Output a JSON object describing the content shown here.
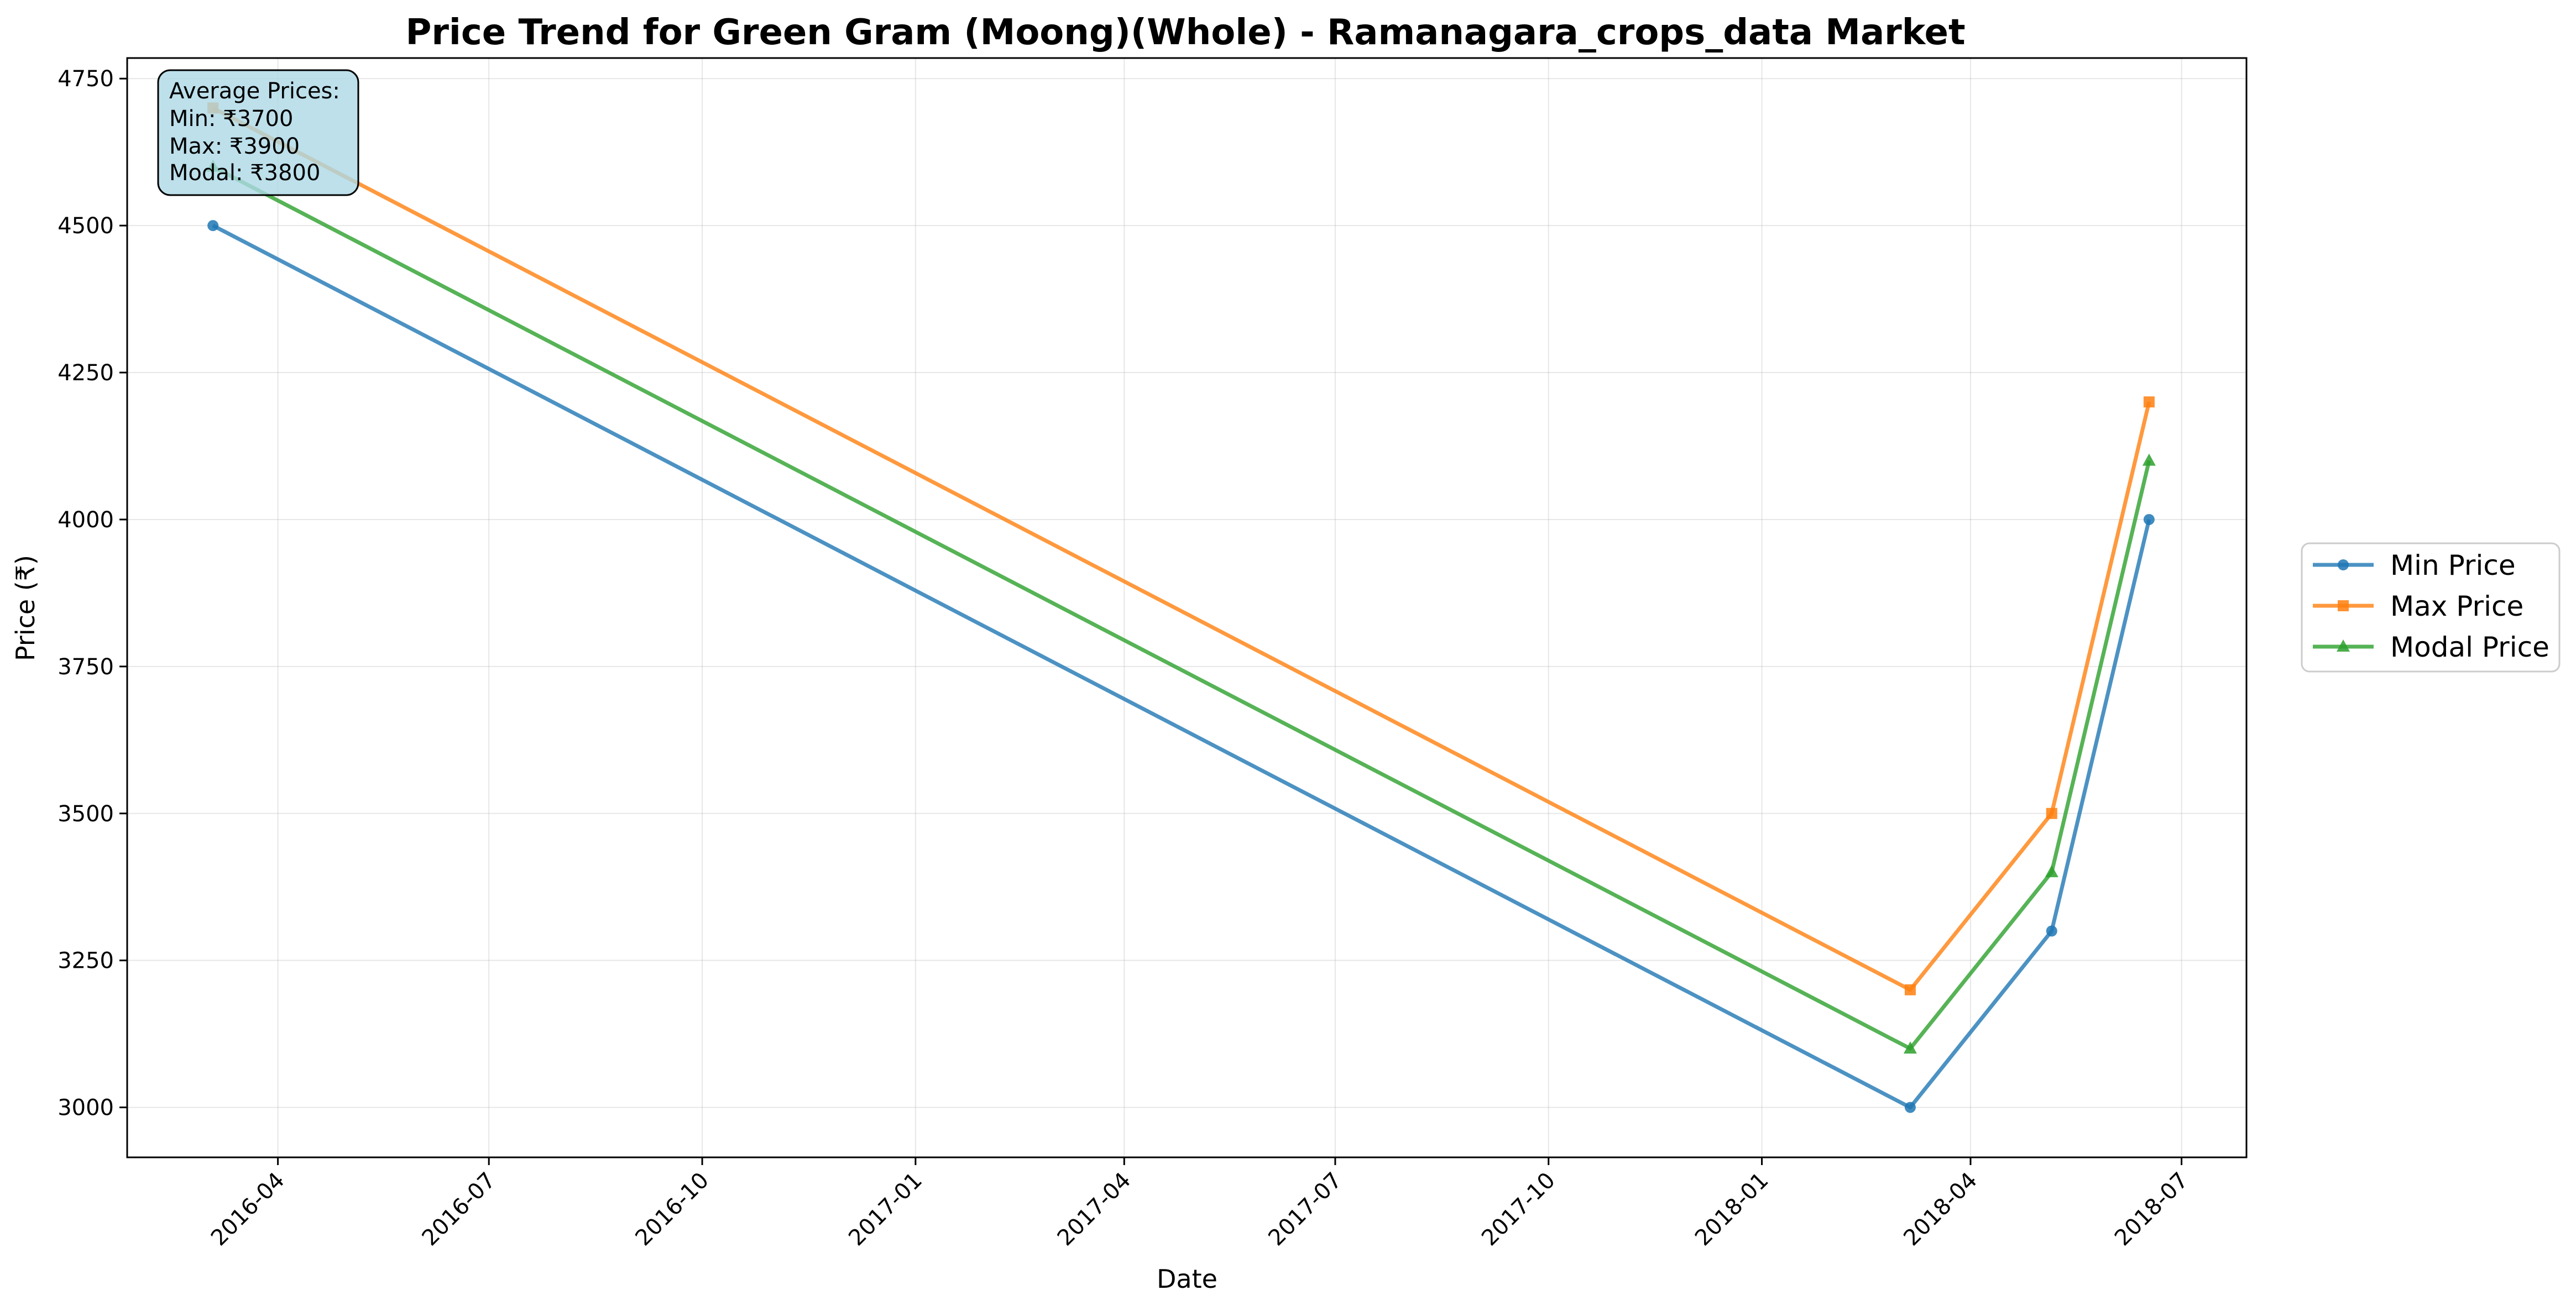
{
  "chart_data": {
    "type": "line",
    "title": "Price Trend for Green Gram (Moong)(Whole) - Ramanagara_crops_data Market",
    "xlabel": "Date",
    "ylabel": "Price (₹)",
    "x_ticks": [
      "2016-04",
      "2016-07",
      "2016-10",
      "2017-01",
      "2017-04",
      "2017-07",
      "2017-10",
      "2018-01",
      "2018-04",
      "2018-07"
    ],
    "y_ticks": [
      3000,
      3250,
      3500,
      3750,
      4000,
      4250,
      4500,
      4750
    ],
    "xlim": [
      "2016-01-27",
      "2018-07-29"
    ],
    "ylim": [
      2915,
      4785
    ],
    "x": [
      "2016-03-04",
      "2018-03-06",
      "2018-05-06",
      "2018-06-17"
    ],
    "series": [
      {
        "name": "Min Price",
        "color": "#1f77b4",
        "marker": "circle",
        "values": [
          4500,
          3000,
          3300,
          4000
        ]
      },
      {
        "name": "Max Price",
        "color": "#ff7f0e",
        "marker": "square",
        "values": [
          4700,
          3200,
          3500,
          4200
        ]
      },
      {
        "name": "Modal Price",
        "color": "#2ca02c",
        "marker": "triangle",
        "values": [
          4600,
          3100,
          3400,
          4100
        ]
      }
    ],
    "grid": true,
    "legend_position": "right, outside plot",
    "annotation": {
      "lines": [
        "Average Prices:",
        "Min: ₹3700",
        "Max: ₹3900",
        "Modal: ₹3800"
      ],
      "box_color": "#add8e6",
      "position": "top-left"
    }
  }
}
